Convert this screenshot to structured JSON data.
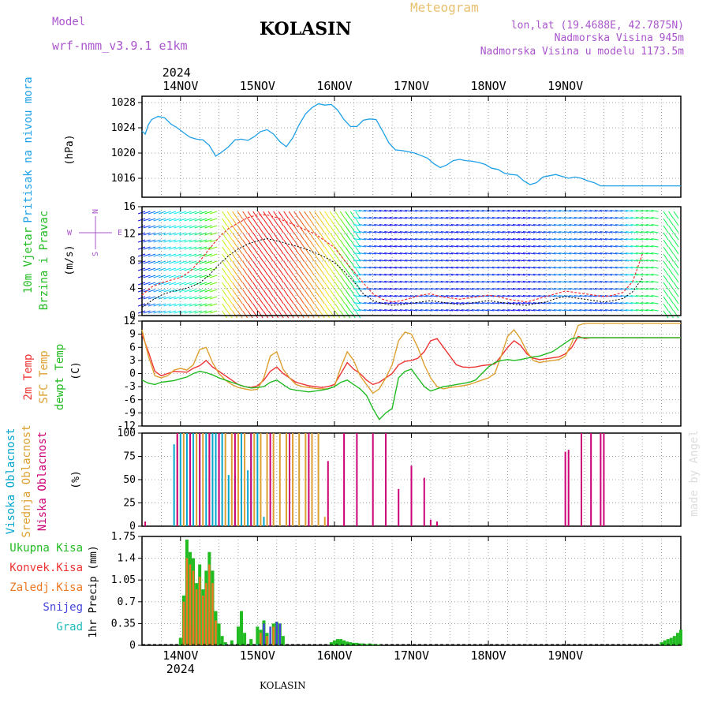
{
  "header": {
    "model_label": "Model",
    "model_value": "wrf-nmm_v3.9.1 e1km",
    "title": "KOLASIN",
    "meteogram": "Meteogram",
    "lonlat": "lon,lat (19.4688E, 42.7875N)",
    "elevation": "Nadmorska Visina 945m",
    "model_elevation": "Nadmorska Visina u modelu 1173.5m"
  },
  "footer": {
    "station": "KOLASIN",
    "credit": "made by Angel",
    "year": "2024"
  },
  "days": [
    "14NOV",
    "15NOV",
    "16NOV",
    "17NOV",
    "18NOV",
    "19NOV"
  ],
  "colors": {
    "pressure": "#1ea0e6",
    "t2m": "#ee3333",
    "tsfc": "#dda030",
    "dewpt": "#22bb22",
    "wind_speed": "#000000",
    "gust": "#ee3333",
    "cloud_high": "#00a6cc",
    "cloud_mid": "#dda030",
    "cloud_low": "#cc0077",
    "precip_total": "#22bb22",
    "precip_conv": "#ee3333",
    "precip_frozen": "#ee7722",
    "precip_snow": "#4444dd",
    "precip_graupel": "#22bbbb"
  },
  "chart_data": [
    {
      "type": "line",
      "name": "pressure",
      "ylabel": "Pritisak na nivou mora",
      "unit": "(hPa)",
      "ylim": [
        1013,
        1029
      ],
      "yticks": [
        1016,
        1020,
        1024,
        1028
      ],
      "grid": true,
      "x_hours_from_first_midnight": [
        -12,
        -11,
        -10,
        -9,
        -7,
        -5,
        -3,
        -1,
        1,
        3,
        5,
        7,
        9,
        11,
        13,
        15,
        17,
        19,
        21,
        23,
        25,
        27,
        29,
        31,
        33,
        35,
        37,
        39,
        41,
        43,
        45,
        47,
        49,
        51,
        53,
        55,
        57,
        59,
        61,
        63,
        65,
        67,
        69,
        71,
        73,
        75,
        77,
        79,
        81,
        83,
        85,
        87,
        89,
        91,
        93,
        95,
        97,
        99,
        101,
        103,
        105,
        107,
        109,
        111,
        113,
        115,
        117,
        119,
        121,
        123,
        125,
        127,
        129,
        131,
        133,
        135,
        137,
        139,
        141,
        143,
        145,
        147,
        149,
        151,
        153,
        155,
        156
      ],
      "values": [
        1023.5,
        1023,
        1024.5,
        1025.3,
        1025.8,
        1025.6,
        1024.6,
        1024,
        1023.2,
        1022.5,
        1022.2,
        1022.1,
        1021.2,
        1019.5,
        1020.2,
        1021,
        1022.1,
        1022.2,
        1022,
        1022.6,
        1023.4,
        1023.7,
        1023,
        1021.8,
        1021,
        1022.4,
        1024.5,
        1026.2,
        1027.2,
        1027.8,
        1027.6,
        1027.7,
        1026.8,
        1025.3,
        1024.2,
        1024.2,
        1025.2,
        1025.4,
        1025.3,
        1023.5,
        1021.6,
        1020.5,
        1020.4,
        1020.2,
        1020,
        1019.6,
        1019.2,
        1018.3,
        1017.7,
        1018.1,
        1018.8,
        1019,
        1018.8,
        1018.7,
        1018.5,
        1018.2,
        1017.6,
        1017.4,
        1016.8,
        1016.6,
        1016.5,
        1015.6,
        1015,
        1015.3,
        1016.2,
        1016.4,
        1016.6,
        1016.3,
        1016,
        1016.2,
        1016,
        1015.6,
        1015.3,
        1014.8,
        1014.8,
        1014.8,
        1014.8,
        1014.8,
        1014.8,
        1014.8,
        1014.8,
        1014.8,
        1014.8,
        1014.8,
        1014.8,
        1014.8,
        1014.8
      ]
    },
    {
      "type": "line",
      "name": "wind",
      "ylabel": "10m Vjetar Brzina i Pravac",
      "unit": "(m/s)",
      "direction_key": [
        "N",
        "E",
        "S",
        "W"
      ],
      "ylim": [
        0,
        16
      ],
      "yticks": [
        0,
        4,
        8,
        12,
        16
      ],
      "grid": true,
      "x_hours_from_first_midnight": [
        -12,
        -9,
        -6,
        -3,
        0,
        3,
        6,
        9,
        12,
        15,
        18,
        21,
        24,
        27,
        30,
        33,
        36,
        39,
        42,
        45,
        48,
        51,
        54,
        57,
        60,
        63,
        66,
        69,
        72,
        75,
        78,
        81,
        84,
        87,
        90,
        93,
        96,
        99,
        102,
        105,
        108,
        111,
        114,
        117,
        120,
        123,
        126,
        129,
        132,
        135,
        138,
        141,
        144
      ],
      "speed": [
        1.2,
        2.2,
        3.0,
        3.5,
        3.8,
        4.2,
        4.8,
        6.0,
        7.5,
        8.8,
        9.8,
        10.5,
        11.0,
        11.3,
        11.0,
        10.6,
        10.2,
        9.8,
        9.2,
        8.6,
        7.8,
        6.5,
        5.0,
        3.2,
        2.2,
        1.8,
        1.5,
        1.6,
        1.8,
        2.0,
        2.2,
        2.0,
        1.8,
        1.6,
        1.8,
        2.0,
        2.2,
        2.0,
        1.8,
        1.6,
        1.5,
        1.8,
        2.0,
        2.5,
        2.8,
        2.6,
        2.4,
        2.2,
        2.0,
        2.2,
        2.5,
        3.5,
        5.5
      ],
      "gust": [
        3.0,
        4.2,
        4.8,
        5.2,
        5.6,
        6.5,
        8.0,
        9.8,
        11.5,
        12.8,
        13.6,
        14.4,
        14.8,
        14.8,
        14.4,
        13.8,
        13.2,
        12.6,
        12.0,
        11.0,
        10.0,
        8.2,
        6.5,
        4.8,
        3.2,
        2.4,
        2.0,
        2.2,
        2.6,
        3.0,
        3.2,
        2.8,
        2.6,
        2.4,
        2.6,
        2.8,
        3.0,
        2.8,
        2.4,
        2.2,
        2.0,
        2.4,
        2.8,
        3.2,
        3.6,
        3.4,
        3.2,
        3.0,
        2.8,
        3.0,
        3.4,
        5.0,
        9.0
      ]
    },
    {
      "type": "line",
      "name": "temperature",
      "ylabel": "2m Temp SFC Temp dewpt Temp",
      "unit": "(C)",
      "ylim": [
        -12,
        12
      ],
      "yticks": [
        -12,
        -9,
        -6,
        -3,
        0,
        3,
        6,
        9,
        12
      ],
      "grid": true,
      "x_hours_from_first_midnight": [
        -12,
        -10,
        -8,
        -6,
        -4,
        -2,
        0,
        2,
        4,
        6,
        8,
        10,
        12,
        14,
        16,
        18,
        20,
        22,
        24,
        26,
        28,
        30,
        32,
        34,
        36,
        38,
        40,
        42,
        44,
        46,
        48,
        50,
        52,
        54,
        56,
        58,
        60,
        62,
        64,
        66,
        68,
        70,
        72,
        74,
        76,
        78,
        80,
        82,
        84,
        86,
        88,
        90,
        92,
        94,
        96,
        98,
        100,
        102,
        104,
        106,
        108,
        110,
        112,
        114,
        116,
        118,
        120,
        122,
        124,
        126,
        128,
        130,
        132,
        134,
        136,
        138,
        140,
        142,
        144,
        146,
        148,
        150,
        152,
        154,
        156
      ],
      "series": [
        {
          "name": "2m Temp",
          "values": [
            9,
            5,
            0.5,
            -0.5,
            0,
            0.5,
            0.4,
            0.3,
            1.2,
            1.8,
            3.0,
            1.5,
            0.5,
            -0.5,
            -1.5,
            -2.5,
            -3.0,
            -3.2,
            -2.8,
            -1.5,
            0.5,
            1.5,
            0.0,
            -1.0,
            -2.0,
            -2.4,
            -2.8,
            -3.0,
            -3.2,
            -3.0,
            -2.5,
            0.0,
            2.5,
            1.0,
            0.0,
            -1.5,
            -2.5,
            -2.0,
            -1.0,
            0.0,
            2.0,
            2.8,
            3.0,
            3.5,
            5.0,
            7.5,
            8.0,
            6.0,
            4.0,
            2.0,
            1.5,
            1.4,
            1.5,
            1.8,
            2.0,
            2.2,
            4.0,
            6.0,
            7.5,
            6.5,
            4.5,
            3.5,
            3.2,
            3.4,
            3.6,
            3.8,
            4.5,
            6.0,
            8.5,
            8.0,
            8.2,
            8.2,
            8.2,
            8.2,
            8.2,
            8.2,
            8.2,
            8.2,
            8.2,
            8.2,
            8.2,
            8.2,
            8.2,
            8.2,
            8.2
          ]
        },
        {
          "name": "SFC Temp",
          "values": [
            10,
            4,
            -0.5,
            -1.0,
            -0.5,
            0.8,
            1.2,
            0.8,
            2.0,
            5.5,
            6.0,
            2.5,
            0.0,
            -1.5,
            -2.5,
            -3.2,
            -3.5,
            -3.8,
            -3.6,
            -1.0,
            4.0,
            5.0,
            1.0,
            -1.0,
            -2.5,
            -3.0,
            -3.2,
            -3.4,
            -3.5,
            -3.5,
            -3.0,
            1.5,
            5.0,
            3.0,
            -0.5,
            -2.5,
            -4.5,
            -3.5,
            -1.0,
            2.0,
            7.5,
            9.5,
            9.0,
            6.0,
            2.0,
            -1.0,
            -3.0,
            -3.5,
            -3.2,
            -3.0,
            -2.8,
            -2.5,
            -2.0,
            -1.5,
            -1.0,
            0.0,
            4.0,
            8.5,
            10.0,
            8.0,
            5.0,
            3.0,
            2.5,
            2.8,
            3.0,
            3.2,
            4.0,
            7.0,
            11.0,
            11.5,
            11.5,
            11.5,
            11.5,
            11.5,
            11.5,
            11.5,
            11.5,
            11.5,
            11.5,
            11.5,
            11.5,
            11.5,
            11.5,
            11.5,
            11.5
          ]
        },
        {
          "name": "dewpt Temp",
          "values": [
            -1.5,
            -2.2,
            -2.5,
            -2.0,
            -1.8,
            -1.6,
            -1.2,
            -0.8,
            0.0,
            0.5,
            0.2,
            -0.3,
            -1.0,
            -1.5,
            -2.0,
            -2.5,
            -3.0,
            -3.3,
            -3.2,
            -3.0,
            -2.0,
            -1.5,
            -2.5,
            -3.5,
            -3.8,
            -4.0,
            -4.2,
            -4.0,
            -3.8,
            -3.5,
            -3.0,
            -2.0,
            -1.5,
            -2.5,
            -3.5,
            -5.0,
            -8.0,
            -10.5,
            -9.0,
            -8.0,
            -1.0,
            0.5,
            1.0,
            -1.0,
            -3.0,
            -4.0,
            -3.5,
            -3.0,
            -2.8,
            -2.5,
            -2.3,
            -2.0,
            -1.5,
            0.0,
            1.5,
            2.5,
            3.0,
            3.2,
            3.0,
            3.2,
            3.5,
            3.8,
            4.0,
            4.5,
            5.0,
            6.0,
            7.0,
            8.0,
            8.2,
            8.2,
            8.2,
            8.2,
            8.2,
            8.2,
            8.2,
            8.2,
            8.2,
            8.2,
            8.2,
            8.2,
            8.2,
            8.2,
            8.2,
            8.2,
            8.2
          ]
        }
      ]
    },
    {
      "type": "bar",
      "name": "clouds",
      "ylabel": "Visoka Oblacnost Srednja Oblacnost Niska Oblacnost",
      "unit": "(%)",
      "ylim": [
        0,
        100
      ],
      "yticks": [
        0,
        25,
        50,
        75,
        100
      ],
      "grid": true,
      "series": [
        {
          "name": "Visoka Oblacnost",
          "x": [
            -2,
            0,
            2,
            4,
            6,
            8,
            10,
            11,
            13,
            15,
            17,
            19,
            21,
            22,
            24,
            26
          ],
          "values": [
            88,
            100,
            100,
            100,
            100,
            100,
            100,
            100,
            100,
            55,
            55,
            100,
            60,
            100,
            100,
            10
          ]
        },
        {
          "name": "Srednja Oblacnost",
          "x": [
            -1,
            1,
            3,
            5,
            7,
            9,
            12,
            14,
            16,
            18,
            20,
            23,
            25,
            27,
            29,
            31,
            33,
            35,
            37,
            39,
            41,
            43,
            45
          ],
          "values": [
            100,
            100,
            100,
            100,
            100,
            100,
            100,
            100,
            100,
            100,
            100,
            100,
            100,
            100,
            100,
            100,
            100,
            100,
            100,
            100,
            100,
            100,
            10
          ]
        },
        {
          "name": "Niska Oblacnost",
          "x": [
            -11,
            -1,
            3,
            6,
            9,
            12,
            17,
            22,
            28,
            34,
            40,
            46,
            51,
            55,
            60,
            64,
            68,
            72,
            76,
            78,
            80,
            120,
            121,
            125,
            128,
            131,
            132
          ],
          "values": [
            5,
            100,
            100,
            100,
            100,
            100,
            100,
            100,
            100,
            100,
            100,
            70,
            100,
            100,
            100,
            100,
            40,
            65,
            52,
            7,
            5,
            80,
            82,
            100,
            100,
            100,
            100
          ]
        }
      ]
    },
    {
      "type": "bar",
      "name": "precipitation",
      "ylabel": "1hr Precip",
      "unit": "(mm)",
      "ylim": [
        0,
        1.75
      ],
      "yticks": [
        0,
        0.35,
        0.7,
        1.05,
        1.4,
        1.75
      ],
      "ytick_labels": [
        "0",
        "0.35",
        "0.7",
        "1.05",
        "1.4",
        "1.75"
      ],
      "grid": true,
      "legend": [
        "Ukupna Kisa",
        "Konvek.Kisa",
        "Zaledj.Kisa",
        "Snijeg",
        "Grad"
      ],
      "series": [
        {
          "name": "Ukupna Kisa",
          "x": [
            0,
            1,
            2,
            3,
            4,
            5,
            6,
            7,
            8,
            9,
            10,
            11,
            12,
            13,
            14,
            16,
            18,
            19,
            20,
            22,
            24,
            25,
            26,
            27,
            29,
            30,
            31,
            32,
            47,
            48,
            49,
            50,
            51,
            52,
            53,
            54,
            55,
            56,
            57,
            58,
            59,
            60,
            61,
            62,
            150,
            151,
            152,
            153,
            154,
            155,
            156
          ],
          "values": [
            0.12,
            0.8,
            1.7,
            1.5,
            1.4,
            1.0,
            1.3,
            0.9,
            1.2,
            1.5,
            1.2,
            0.55,
            0.35,
            0.15,
            0.05,
            0.08,
            0.3,
            0.55,
            0.2,
            0.1,
            0.3,
            0.25,
            0.4,
            0.2,
            0.35,
            0.38,
            0.35,
            0.15,
            0.05,
            0.08,
            0.1,
            0.1,
            0.08,
            0.06,
            0.05,
            0.04,
            0.04,
            0.03,
            0.03,
            0.02,
            0.03,
            0.02,
            0.02,
            0.01,
            0.05,
            0.08,
            0.1,
            0.12,
            0.15,
            0.2,
            0.25
          ]
        },
        {
          "name": "Konvek.Kisa",
          "x": [
            2,
            3,
            4,
            5,
            6,
            7,
            8,
            9
          ],
          "values": [
            0.3,
            0.4,
            0.3,
            0.2,
            0.3,
            0.2,
            0.3,
            0.3
          ]
        },
        {
          "name": "Zaledj.Kisa",
          "x": [
            1,
            2,
            3,
            4,
            5,
            6,
            7,
            8,
            9,
            10,
            11,
            25,
            27,
            29
          ],
          "values": [
            0.7,
            1.4,
            1.3,
            1.2,
            0.9,
            1.1,
            0.8,
            1.0,
            1.3,
            1.0,
            0.4,
            0.2,
            0.15,
            0.3
          ]
        },
        {
          "name": "Snijeg",
          "x": [
            26,
            28,
            30,
            31
          ],
          "values": [
            0.35,
            0.3,
            0.38,
            0.35
          ]
        },
        {
          "name": "Grad",
          "x": [
            14,
            24
          ],
          "values": [
            0.02,
            0.02
          ]
        }
      ]
    }
  ]
}
